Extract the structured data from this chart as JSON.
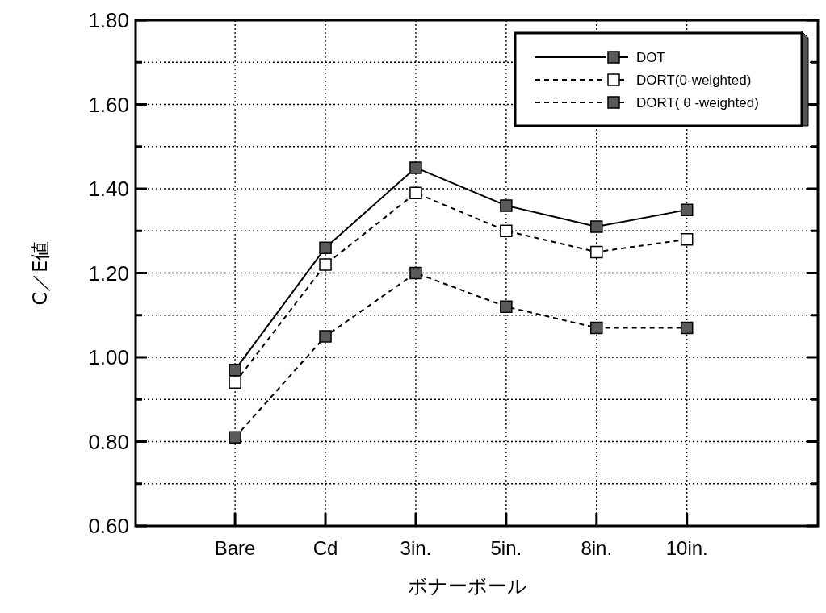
{
  "chart_data": {
    "type": "line",
    "xlabel": "ボナーボール",
    "ylabel": "C／E値",
    "categories": [
      "Bare",
      "Cd",
      "3in.",
      "5in.",
      "8in.",
      "10in."
    ],
    "series": [
      {
        "name": "DOT",
        "color": "#5a5a5a",
        "line_style": "solid",
        "values": [
          0.97,
          1.26,
          1.45,
          1.36,
          1.31,
          1.35
        ]
      },
      {
        "name": "DORT(0-weighted)",
        "color": "#ffffff",
        "line_style": "dashed",
        "values": [
          0.94,
          1.22,
          1.39,
          1.3,
          1.25,
          1.28
        ]
      },
      {
        "name": "DORT( θ -weighted)",
        "color": "#5a5a5a",
        "line_style": "dashed",
        "values": [
          0.81,
          1.05,
          1.2,
          1.12,
          1.07,
          1.07
        ]
      }
    ],
    "ylim": [
      0.6,
      1.8
    ],
    "yticks": [
      {
        "value": 0.6,
        "label": "0.60"
      },
      {
        "value": 0.7,
        "label": null
      },
      {
        "value": 0.8,
        "label": "0.80"
      },
      {
        "value": 0.9,
        "label": null
      },
      {
        "value": 1.0,
        "label": "1.00"
      },
      {
        "value": 1.1,
        "label": null
      },
      {
        "value": 1.2,
        "label": "1.20"
      },
      {
        "value": 1.3,
        "label": null
      },
      {
        "value": 1.4,
        "label": "1.40"
      },
      {
        "value": 1.5,
        "label": null
      },
      {
        "value": 1.6,
        "label": "1.60"
      },
      {
        "value": 1.7,
        "label": null
      },
      {
        "value": 1.8,
        "label": "1.80"
      }
    ],
    "grid": true,
    "legend": "top right",
    "marker": "square"
  }
}
